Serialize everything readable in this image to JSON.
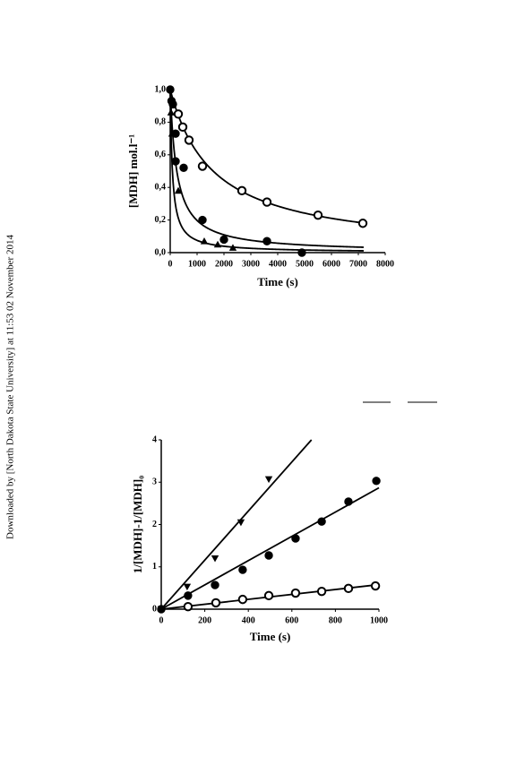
{
  "sidebar": "Downloaded by [North Dakota State University] at 11:53 02 November 2014",
  "chart_data": [
    {
      "type": "scatter",
      "xlabel": "Time (s)",
      "ylabel": "[MDH]  mol.l⁻¹",
      "fit": "second-order",
      "xlim": [
        0,
        8000
      ],
      "xticks": [
        0,
        1000,
        2000,
        3000,
        4000,
        5000,
        6000,
        7000,
        8000
      ],
      "ylim": [
        0,
        1.0
      ],
      "yticks": [
        {
          "value": 0,
          "label": "0,0"
        },
        {
          "value": 0.2,
          "label": "0,2"
        },
        {
          "value": 0.4,
          "label": "0,4"
        },
        {
          "value": 0.6,
          "label": "0,6"
        },
        {
          "value": 0.8,
          "label": "0,8"
        },
        {
          "value": 1.0,
          "label": "1,0"
        }
      ],
      "series": [
        {
          "marker": "circle-open",
          "color": "#000000",
          "x": [
            300,
            467,
            700,
            1200,
            2667,
            3600,
            5500,
            7167
          ],
          "values": [
            0.85,
            0.77,
            0.69,
            0.53,
            0.38,
            0.31,
            0.23,
            0.18
          ]
        },
        {
          "marker": "circle",
          "color": "#000000",
          "x": [
            0,
            50,
            100,
            200,
            200,
            500,
            1200,
            2000,
            3600,
            4900
          ],
          "values": [
            1.0,
            0.93,
            0.91,
            0.73,
            0.56,
            0.52,
            0.2,
            0.08,
            0.07,
            0.0
          ]
        },
        {
          "marker": "triangle",
          "color": "#000000",
          "x": [
            30,
            67,
            300,
            1267,
            1767,
            2333
          ],
          "values": [
            0.86,
            0.73,
            0.38,
            0.07,
            0.05,
            0.03
          ]
        }
      ]
    },
    {
      "type": "scatter",
      "xlabel": "Time (s)",
      "ylabel": "1/[MDH]-1/[MDH]₀",
      "fit": "linear",
      "xlim": [
        0,
        1000
      ],
      "xticks": [
        0,
        200,
        400,
        600,
        800,
        1000
      ],
      "ylim": [
        0,
        4
      ],
      "yticks": [
        0,
        1,
        2,
        3,
        4
      ],
      "series": [
        {
          "marker": "triangle-down",
          "color": "#000000",
          "x": [
            0,
            119,
            247,
            366,
            494
          ],
          "values": [
            0,
            0.53,
            1.2,
            2.05,
            3.07
          ]
        },
        {
          "marker": "circle",
          "color": "#000000",
          "x": [
            0,
            123,
            247,
            374,
            494,
            617,
            737,
            860,
            988
          ],
          "values": [
            0,
            0.32,
            0.57,
            0.93,
            1.27,
            1.67,
            2.07,
            2.54,
            3.03
          ]
        },
        {
          "marker": "circle-open",
          "color": "#000000",
          "x": [
            123,
            251,
            374,
            494,
            617,
            737,
            860,
            984
          ],
          "values": [
            0.06,
            0.15,
            0.23,
            0.32,
            0.38,
            0.42,
            0.49,
            0.55
          ]
        }
      ]
    }
  ]
}
